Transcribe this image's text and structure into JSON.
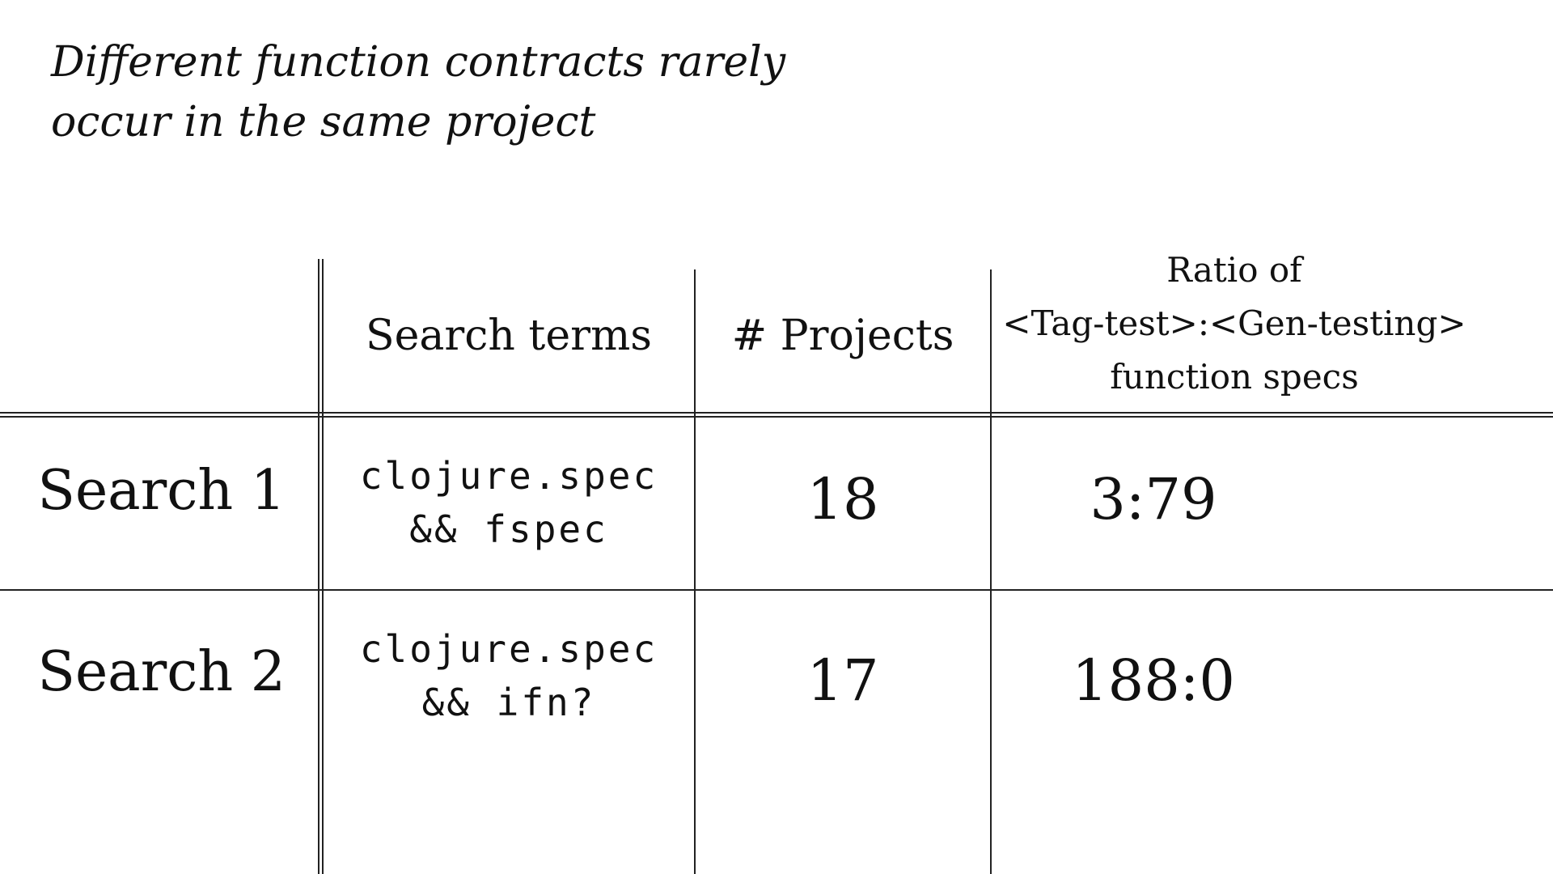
{
  "slide": {
    "title_lines": [
      "Different function contracts rarely",
      "occur in the same project"
    ]
  },
  "table": {
    "headers": {
      "row_label": "",
      "search_terms": "Search terms",
      "projects": "# Projects",
      "ratio_lines": [
        "Ratio of",
        "<Tag-test>:<Gen-testing>",
        "function specs"
      ]
    },
    "rows": [
      {
        "label": "Search 1",
        "terms_lines": [
          "clojure.spec",
          "&& fspec"
        ],
        "projects": "18",
        "ratio": "3:79"
      },
      {
        "label": "Search 2",
        "terms_lines": [
          "clojure.spec",
          "&& ifn?"
        ],
        "projects": "17",
        "ratio": "188:0"
      }
    ]
  }
}
